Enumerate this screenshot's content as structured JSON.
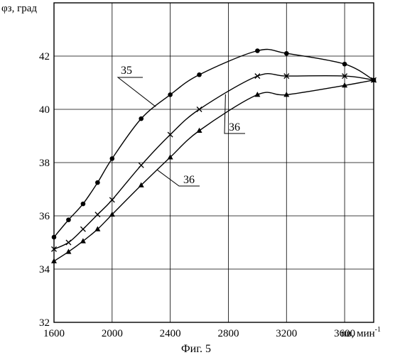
{
  "chart_data": {
    "type": "line",
    "caption": "Фиг. 5",
    "ylabel": "φз, град",
    "xlabel_main": "nв, мин",
    "xlabel_exp": "-1",
    "xlim": [
      1600,
      3800
    ],
    "ylim": [
      32,
      44
    ],
    "grid": true,
    "x_ticks": [
      1600,
      2000,
      2400,
      2800,
      3200,
      3600
    ],
    "y_ticks": [
      32,
      34,
      36,
      38,
      40,
      42
    ],
    "series": [
      {
        "name": "35",
        "marker": "circle",
        "x": [
          1600,
          1700,
          1800,
          1900,
          2000,
          2200,
          2400,
          2600,
          3000,
          3200,
          3600,
          3800
        ],
        "y": [
          35.2,
          35.85,
          36.45,
          37.25,
          38.15,
          39.65,
          40.55,
          41.3,
          42.2,
          42.1,
          41.7,
          41.1
        ]
      },
      {
        "name": "36",
        "marker": "cross",
        "x": [
          1600,
          1700,
          1800,
          1900,
          2000,
          2200,
          2400,
          2600,
          3000,
          3200,
          3600,
          3800
        ],
        "y": [
          34.75,
          35.0,
          35.5,
          36.05,
          36.6,
          37.9,
          39.05,
          40.0,
          41.25,
          41.25,
          41.25,
          41.1
        ]
      },
      {
        "name": "36",
        "marker": "triangle",
        "x": [
          1600,
          1700,
          1800,
          1900,
          2000,
          2200,
          2400,
          2600,
          3000,
          3200,
          3600,
          3800
        ],
        "y": [
          34.3,
          34.65,
          35.05,
          35.5,
          36.05,
          37.15,
          38.2,
          39.2,
          40.55,
          40.55,
          40.9,
          41.1
        ]
      }
    ]
  }
}
